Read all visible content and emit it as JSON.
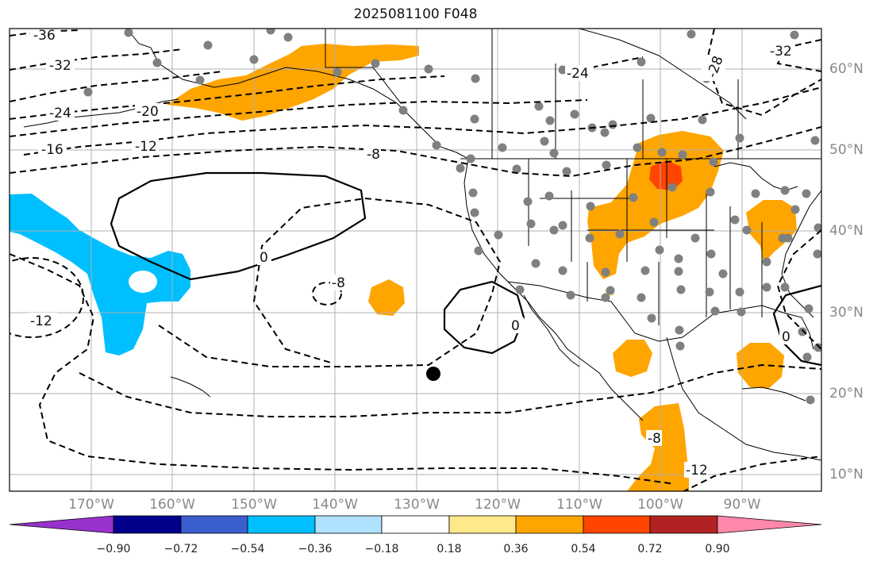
{
  "title": "2025081100 F048",
  "colors": {
    "orange": "#ffa500",
    "red_orange": "#ff4500",
    "sky": "#00bfff",
    "yellow": "#ffe98a",
    "ocean": "#ffffff",
    "grid": "#b0b0b0",
    "coast": "#000000",
    "station": "#808080"
  },
  "lon_labels": [
    "170°W",
    "160°W",
    "150°W",
    "140°W",
    "130°W",
    "120°W",
    "110°W",
    "100°W",
    "90°W"
  ],
  "lat_labels": [
    "60°N",
    "50°N",
    "40°N",
    "30°N",
    "20°N",
    "10°N"
  ],
  "contour_labels": [
    "-36",
    "-32",
    "-24",
    "-20",
    "-16",
    "-12",
    "-8",
    "0",
    "-8",
    "0",
    "-24",
    "-28",
    "-32",
    "-8",
    "-12",
    "0",
    "-12"
  ],
  "colorbar": {
    "ticks": [
      "−0.90",
      "−0.72",
      "−0.54",
      "−0.36",
      "−0.18",
      "0.18",
      "0.36",
      "0.54",
      "0.72",
      "0.90"
    ],
    "colors": [
      "#9932cc",
      "#00008b",
      "#3a5fcd",
      "#00bfff",
      "#b0e2ff",
      "#ffffff",
      "#ffe98a",
      "#ffa500",
      "#ff4500",
      "#b22222",
      "#ff88aa"
    ]
  },
  "marker": {
    "name": "center point",
    "lon": -128,
    "lat": 22.5
  }
}
